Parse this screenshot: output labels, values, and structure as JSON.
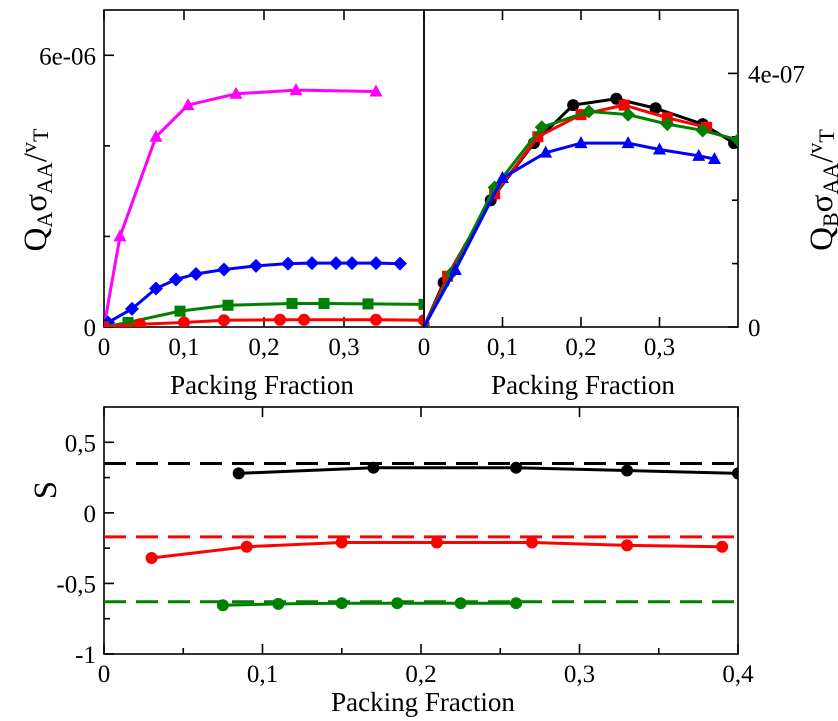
{
  "chart_data": [
    {
      "type": "line",
      "panel": "top-left",
      "xlabel": "Packing Fraction",
      "ylabel": "Q_A σ_AA / v_T",
      "xlim": [
        0,
        0.4
      ],
      "ylim": [
        0,
        7e-06
      ],
      "xticks": [
        "0",
        "0,1",
        "0,2",
        "0,3"
      ],
      "yticks": [
        "0",
        "6e-06"
      ],
      "series": [
        {
          "color": "#ff00ff",
          "marker": "triangle",
          "x": [
            0,
            0.02,
            0.065,
            0.105,
            0.165,
            0.24,
            0.34
          ],
          "y": [
            0,
            2e-06,
            4.2e-06,
            4.9e-06,
            5.15e-06,
            5.23e-06,
            5.2e-06
          ]
        },
        {
          "color": "#0000ff",
          "marker": "diamond",
          "x": [
            0,
            0.005,
            0.035,
            0.065,
            0.09,
            0.115,
            0.15,
            0.19,
            0.23,
            0.26,
            0.29,
            0.31,
            0.34,
            0.37
          ],
          "y": [
            0,
            1e-07,
            4e-07,
            8.5e-07,
            1.05e-06,
            1.17e-06,
            1.27e-06,
            1.35e-06,
            1.4e-06,
            1.41e-06,
            1.41e-06,
            1.41e-06,
            1.41e-06,
            1.4e-06
          ],
          "y_rel": [
            0,
            0.02,
            0.055,
            0.115,
            0.145,
            0.162,
            0.176,
            0.188,
            0.195,
            0.196,
            0.196,
            0.196,
            0.196,
            0.194
          ]
        },
        {
          "color": "#008000",
          "marker": "square",
          "x": [
            0,
            0.03,
            0.095,
            0.155,
            0.235,
            0.275,
            0.33,
            0.4
          ],
          "y": [
            0,
            1e-07,
            3.5e-07,
            4.8e-07,
            5.2e-07,
            5.2e-07,
            5.1e-07,
            5e-07
          ]
        },
        {
          "color": "#ff0000",
          "marker": "circle",
          "x": [
            0,
            0.045,
            0.1,
            0.15,
            0.22,
            0.25,
            0.34,
            0.4
          ],
          "y": [
            0,
            6e-08,
            1e-07,
            1.5e-07,
            1.6e-07,
            1.6e-07,
            1.6e-07,
            1.5e-07
          ]
        }
      ]
    },
    {
      "type": "line",
      "panel": "top-right",
      "xlabel": "Packing Fraction",
      "ylabel": "Q_B σ_AA / v_T",
      "xlim": [
        0,
        0.4
      ],
      "ylim": [
        0,
        5e-07
      ],
      "xticks": [
        "0",
        "0,1",
        "0,2",
        "0,3"
      ],
      "yticks": [
        "0",
        "4e-07"
      ],
      "series": [
        {
          "color": "#000000",
          "marker": "circle",
          "x": [
            0,
            0.025,
            0.085,
            0.14,
            0.19,
            0.245,
            0.295,
            0.355,
            0.395
          ],
          "y": [
            0,
            7e-08,
            2e-07,
            2.9e-07,
            3.5e-07,
            3.6e-07,
            3.45e-07,
            3.2e-07,
            2.9e-07
          ]
        },
        {
          "color": "#ff0000",
          "marker": "square",
          "x": [
            0,
            0.03,
            0.09,
            0.145,
            0.2,
            0.255,
            0.31,
            0.36
          ],
          "y": [
            0,
            8e-08,
            2.1e-07,
            3e-07,
            3.35e-07,
            3.5e-07,
            3.3e-07,
            3.15e-07
          ]
        },
        {
          "color": "#008000",
          "marker": "diamond",
          "x": [
            0,
            0.035,
            0.09,
            0.15,
            0.21,
            0.26,
            0.31,
            0.355,
            0.4
          ],
          "y": [
            0,
            8.5e-08,
            2.2e-07,
            3.15e-07,
            3.4e-07,
            3.35e-07,
            3.2e-07,
            3.1e-07,
            2.95e-07
          ]
        },
        {
          "color": "#0000ff",
          "marker": "triangle",
          "x": [
            0,
            0.04,
            0.1,
            0.155,
            0.2,
            0.26,
            0.3,
            0.35,
            0.37
          ],
          "y": [
            0,
            9e-08,
            2.35e-07,
            2.75e-07,
            2.9e-07,
            2.9e-07,
            2.8e-07,
            2.7e-07,
            2.65e-07
          ]
        }
      ]
    },
    {
      "type": "line",
      "panel": "bottom",
      "xlabel": "Packing Fraction",
      "ylabel": "S",
      "xlim": [
        0,
        0.4
      ],
      "ylim": [
        -1,
        0.75
      ],
      "xticks": [
        "0",
        "0,1",
        "0,2",
        "0,3",
        "0,4"
      ],
      "yticks": [
        "-1",
        "-0,5",
        "0",
        "0,5"
      ],
      "dashed": [
        {
          "color": "#000000",
          "y": 0.35
        },
        {
          "color": "#ff0000",
          "y": -0.17
        },
        {
          "color": "#008000",
          "y": -0.63
        }
      ],
      "series": [
        {
          "color": "#000000",
          "marker": "circle",
          "x": [
            0.085,
            0.17,
            0.26,
            0.33,
            0.4
          ],
          "y": [
            0.28,
            0.32,
            0.32,
            0.3,
            0.28
          ]
        },
        {
          "color": "#ff0000",
          "marker": "circle",
          "x": [
            0.03,
            0.09,
            0.15,
            0.21,
            0.27,
            0.33,
            0.39
          ],
          "y": [
            -0.32,
            -0.24,
            -0.21,
            -0.21,
            -0.21,
            -0.23,
            -0.24
          ]
        },
        {
          "color": "#008000",
          "marker": "circle",
          "x": [
            0.075,
            0.11,
            0.15,
            0.185,
            0.225,
            0.26
          ],
          "y": [
            -0.655,
            -0.645,
            -0.64,
            -0.64,
            -0.64,
            -0.64
          ]
        }
      ]
    }
  ],
  "labels": {
    "tl_xlabel": "Packing Fraction",
    "tr_xlabel": "Packing Fraction",
    "b_xlabel": "Packing Fraction",
    "b_ylabel": "S"
  }
}
